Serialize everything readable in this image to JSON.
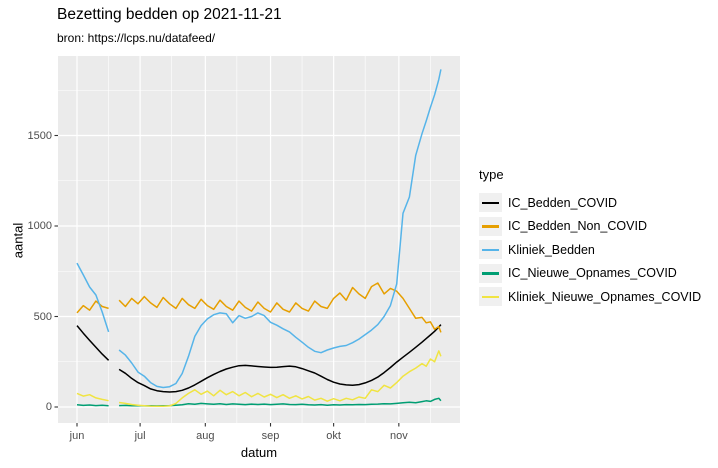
{
  "title": "Bezetting bedden op 2021-11-21",
  "subtitle": "bron: https://lcps.nu/datafeed/",
  "x_axis": {
    "label": "datum",
    "tick_labels": [
      "jun",
      "jul",
      "aug",
      "sep",
      "okt",
      "nov"
    ]
  },
  "y_axis": {
    "label": "aantal",
    "tick_labels": [
      "0",
      "500",
      "1000",
      "1500"
    ]
  },
  "legend": {
    "title": "type"
  },
  "colors": {
    "panel_background": "#EBEBEB",
    "gridline": "#FFFFFF",
    "axis_text": "#4D4D4D",
    "tick_mark": "#333333",
    "legend_key_background": "#F0F0F0"
  },
  "chart_data": {
    "type": "line",
    "title": "Bezetting bedden op 2021-11-21",
    "subtitle": "bron: https://lcps.nu/datafeed/",
    "xlabel": "datum",
    "ylabel": "aantal",
    "legend_title": "type",
    "legend_position": "right",
    "grid": true,
    "date_range": [
      "2021-06-01",
      "2021-11-21"
    ],
    "x_unit": "days since 2021-06-01",
    "x_ticks": {
      "days": [
        0,
        30,
        61,
        92,
        122,
        153
      ],
      "labels": [
        "jun",
        "jul",
        "aug",
        "sep",
        "okt",
        "nov"
      ]
    },
    "x_minor_days": [
      15,
      45,
      76,
      107,
      137,
      168
    ],
    "y_gridlines_major": [
      0,
      500,
      1000,
      1500
    ],
    "y_gridlines_minor": [
      250,
      750,
      1250,
      1750
    ],
    "ylim": [
      0,
      1900
    ],
    "data_gap": {
      "note": "all series briefly missing around 2021-06-17 to 2021-06-20",
      "after_day": 15,
      "resume_day": 20
    },
    "days": [
      0,
      3,
      6,
      9,
      12,
      15,
      20,
      23,
      26,
      29,
      32,
      35,
      38,
      41,
      44,
      47,
      50,
      53,
      56,
      59,
      62,
      65,
      68,
      71,
      74,
      77,
      80,
      83,
      86,
      89,
      92,
      95,
      98,
      101,
      104,
      107,
      110,
      113,
      116,
      119,
      122,
      125,
      128,
      131,
      134,
      137,
      140,
      143,
      146,
      149,
      152,
      155,
      158,
      161,
      164,
      166,
      168,
      170,
      172,
      173
    ],
    "series": [
      {
        "name": "IC_Bedden_COVID",
        "color": "#000000",
        "values": [
          450,
          408,
          368,
          330,
          292,
          258,
          208,
          186,
          158,
          135,
          118,
          100,
          90,
          85,
          83,
          85,
          92,
          105,
          122,
          142,
          162,
          180,
          196,
          210,
          220,
          228,
          230,
          227,
          224,
          221,
          219,
          220,
          223,
          226,
          222,
          212,
          200,
          188,
          170,
          152,
          137,
          127,
          122,
          120,
          124,
          133,
          147,
          165,
          190,
          218,
          248,
          275,
          302,
          330,
          358,
          378,
          398,
          418,
          442,
          455
        ]
      },
      {
        "name": "IC_Bedden_Non_COVID",
        "color": "#E69F00",
        "values": [
          520,
          560,
          535,
          585,
          555,
          545,
          590,
          555,
          600,
          570,
          610,
          575,
          550,
          605,
          570,
          545,
          600,
          565,
          545,
          595,
          560,
          540,
          590,
          555,
          535,
          585,
          550,
          530,
          580,
          545,
          525,
          575,
          540,
          525,
          575,
          545,
          530,
          585,
          555,
          545,
          600,
          630,
          590,
          660,
          625,
          600,
          665,
          685,
          625,
          655,
          640,
          600,
          545,
          490,
          495,
          465,
          470,
          430,
          445,
          412
        ]
      },
      {
        "name": "Kliniek_Bedden",
        "color": "#56B4E9",
        "values": [
          795,
          730,
          663,
          619,
          525,
          415,
          315,
          287,
          243,
          193,
          170,
          135,
          114,
          108,
          112,
          130,
          185,
          280,
          390,
          450,
          487,
          510,
          520,
          515,
          465,
          505,
          490,
          500,
          520,
          505,
          468,
          452,
          432,
          415,
          385,
          358,
          330,
          308,
          300,
          315,
          326,
          335,
          340,
          355,
          375,
          400,
          425,
          455,
          500,
          560,
          680,
          1070,
          1160,
          1390,
          1510,
          1580,
          1655,
          1725,
          1810,
          1865
        ]
      },
      {
        "name": "IC_Nieuwe_Opnames_COVID",
        "color": "#009E73",
        "values": [
          12,
          9,
          11,
          8,
          10,
          7,
          8,
          9,
          7,
          8,
          6,
          7,
          6,
          7,
          8,
          10,
          12,
          18,
          15,
          20,
          17,
          15,
          18,
          14,
          17,
          15,
          13,
          16,
          14,
          16,
          13,
          15,
          17,
          14,
          13,
          15,
          12,
          11,
          13,
          10,
          12,
          11,
          13,
          12,
          14,
          13,
          15,
          16,
          18,
          17,
          20,
          23,
          26,
          24,
          30,
          34,
          31,
          42,
          48,
          35
        ]
      },
      {
        "name": "Kliniek_Nieuwe_Opnames_COVID",
        "color": "#F0E442",
        "values": [
          75,
          60,
          68,
          50,
          42,
          35,
          25,
          20,
          14,
          10,
          7,
          5,
          4,
          4,
          6,
          20,
          50,
          75,
          95,
          70,
          88,
          62,
          92,
          68,
          85,
          62,
          80,
          57,
          75,
          55,
          70,
          52,
          68,
          48,
          62,
          45,
          58,
          38,
          48,
          32,
          46,
          34,
          48,
          40,
          55,
          48,
          95,
          85,
          120,
          105,
          135,
          170,
          195,
          215,
          240,
          225,
          265,
          250,
          310,
          280
        ]
      }
    ]
  }
}
